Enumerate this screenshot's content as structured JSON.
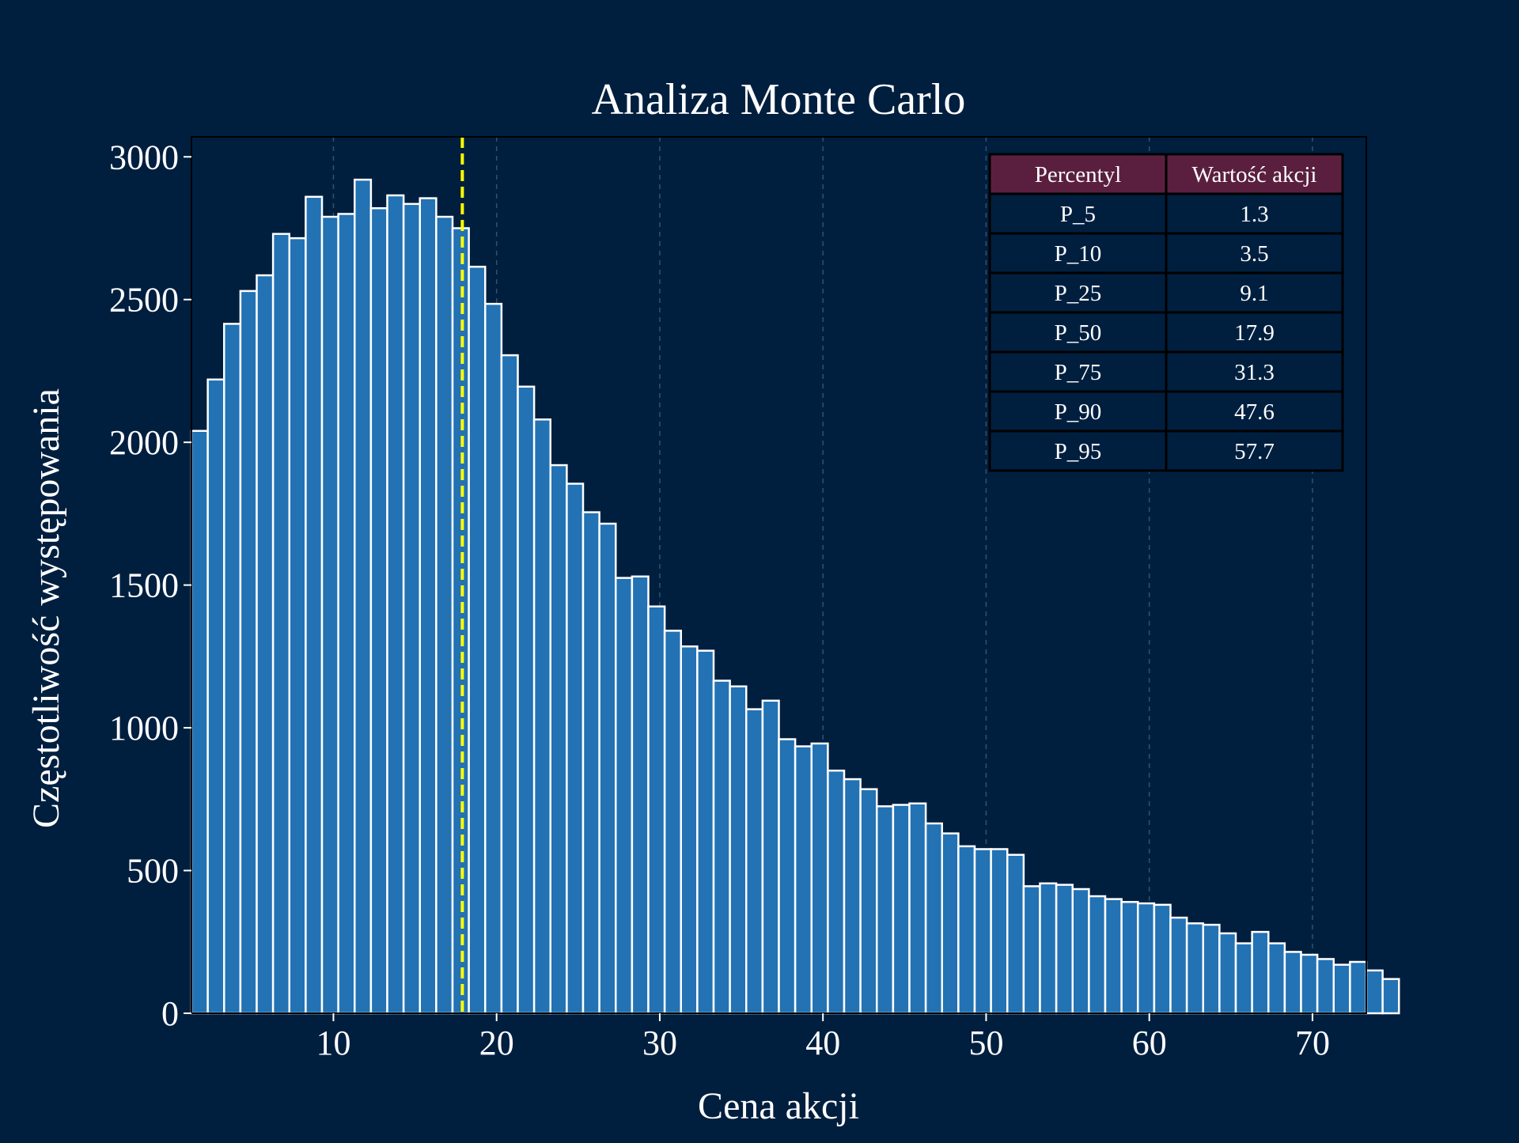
{
  "chart_data": {
    "type": "bar",
    "title": "Analiza Monte Carlo",
    "xlabel": "Cena akcji",
    "ylabel": "Częstotliwość występowania",
    "xlim": [
      1.3,
      73.3
    ],
    "ylim": [
      0,
      3070
    ],
    "bin_width": 1.0,
    "x_start": 1.3,
    "x_ticks": [
      10,
      20,
      30,
      40,
      50,
      60,
      70
    ],
    "y_ticks": [
      0,
      500,
      1000,
      1500,
      2000,
      2500,
      3000
    ],
    "grid": {
      "x": true,
      "y": false,
      "style": "dashed"
    },
    "values": [
      2040,
      2220,
      2415,
      2530,
      2585,
      2730,
      2715,
      2860,
      2790,
      2800,
      2920,
      2820,
      2865,
      2835,
      2855,
      2790,
      2750,
      2615,
      2485,
      2305,
      2195,
      2080,
      1920,
      1855,
      1755,
      1715,
      1525,
      1530,
      1425,
      1340,
      1285,
      1270,
      1165,
      1145,
      1065,
      1095,
      960,
      935,
      945,
      850,
      820,
      785,
      725,
      730,
      735,
      665,
      630,
      585,
      575,
      575,
      555,
      445,
      455,
      450,
      435,
      410,
      400,
      390,
      385,
      380,
      335,
      315,
      310,
      280,
      245,
      285,
      245,
      215,
      205,
      190,
      170,
      180,
      150,
      120
    ],
    "vline": {
      "x": 17.9,
      "color": "#ffff00",
      "style": "dashed"
    },
    "bar_color": "#2272b4",
    "bar_edge_color": "#ffffff",
    "background": "#001f3f"
  },
  "table": {
    "headers": [
      "Percentyl",
      "Wartość akcji"
    ],
    "header_color": "#5a1f3f",
    "rows": [
      [
        "P_5",
        "1.3"
      ],
      [
        "P_10",
        "3.5"
      ],
      [
        "P_25",
        "9.1"
      ],
      [
        "P_50",
        "17.9"
      ],
      [
        "P_75",
        "31.3"
      ],
      [
        "P_90",
        "47.6"
      ],
      [
        "P_95",
        "57.7"
      ]
    ]
  }
}
